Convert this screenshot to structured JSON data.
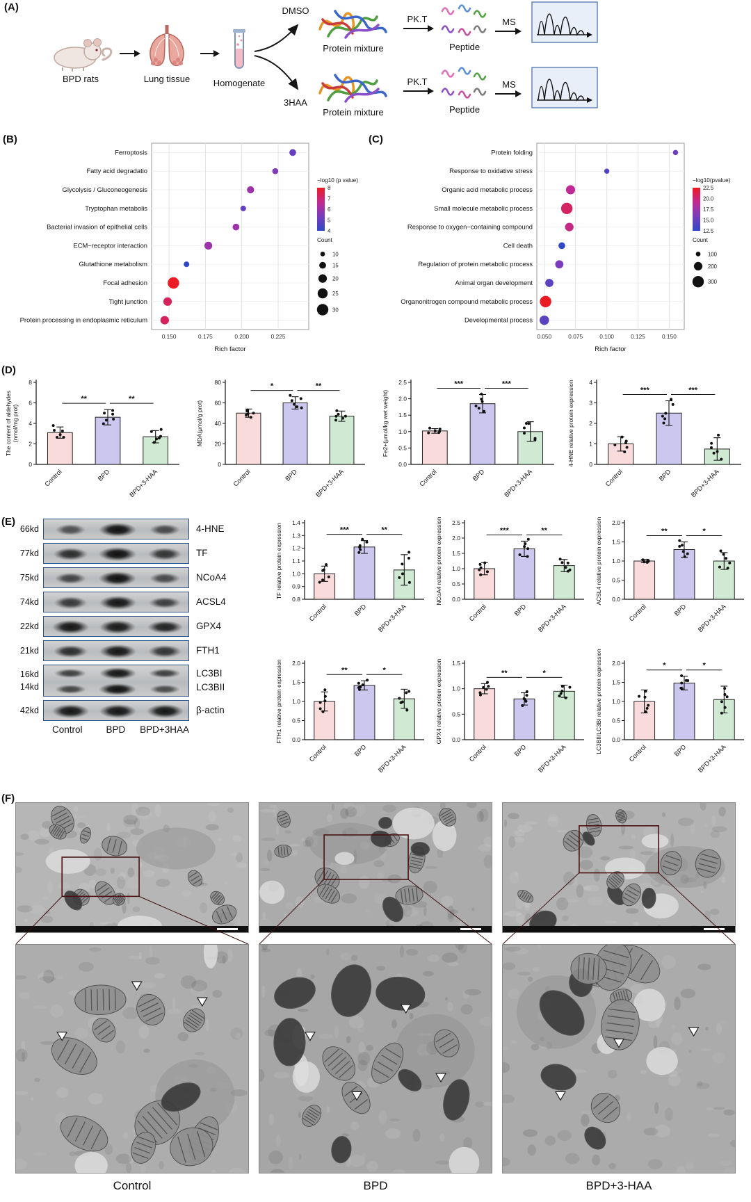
{
  "figure": {
    "panel_labels": [
      "(A)",
      "(B)",
      "(C)",
      "(D)",
      "(E)",
      "(F)"
    ]
  },
  "workflow": {
    "bpd_rats": "BPD rats",
    "lung_tissue": "Lung tissue",
    "homogenate": "Homogenate",
    "dmso": "DMSO",
    "haa": "3HAA",
    "protein_mixture": "Protein mixture",
    "pkt": "PK.T",
    "peptide": "Peptide",
    "ms": "MS"
  },
  "blots": {
    "lanes": [
      "Control",
      "BPD",
      "BPD+3HAA"
    ],
    "rows": [
      {
        "kd": [
          "66kd"
        ],
        "protein": [
          "4-HNE"
        ],
        "bands": [
          [
            0.45,
            1.0,
            0.5
          ]
        ]
      },
      {
        "kd": [
          "77kd"
        ],
        "protein": [
          "TF"
        ],
        "bands": [
          [
            0.75,
            1.0,
            0.7
          ]
        ]
      },
      {
        "kd": [
          "75kd"
        ],
        "protein": [
          "NCoA4"
        ],
        "bands": [
          [
            0.55,
            1.0,
            0.5
          ]
        ]
      },
      {
        "kd": [
          "74kd"
        ],
        "protein": [
          "ACSL4"
        ],
        "bands": [
          [
            0.65,
            0.95,
            0.6
          ]
        ]
      },
      {
        "kd": [
          "22kd"
        ],
        "protein": [
          "GPX4"
        ],
        "bands": [
          [
            0.95,
            0.9,
            0.85
          ]
        ]
      },
      {
        "kd": [
          "21kd"
        ],
        "protein": [
          "FTH1"
        ],
        "bands": [
          [
            0.75,
            0.95,
            0.7
          ]
        ]
      },
      {
        "kd": [
          "16kd",
          "14kd"
        ],
        "protein": [
          "LC3BI",
          "LC3BII"
        ],
        "bands": [
          [
            0.6,
            0.95,
            0.6
          ],
          [
            0.55,
            1.0,
            0.5
          ]
        ]
      },
      {
        "kd": [
          "42kd"
        ],
        "protein": [
          "β-actin"
        ],
        "bands": [
          [
            0.95,
            0.95,
            0.95
          ]
        ]
      }
    ]
  },
  "tem": {
    "columns": [
      {
        "label": "Control",
        "inset": [
          0.2,
          0.42,
          0.33,
          0.3
        ],
        "arrows": [
          [
            0.2,
            0.42
          ],
          [
            0.52,
            0.2
          ],
          [
            0.8,
            0.27
          ]
        ]
      },
      {
        "label": "BPD",
        "inset": [
          0.28,
          0.25,
          0.36,
          0.34
        ],
        "arrows": [
          [
            0.22,
            0.42
          ],
          [
            0.42,
            0.68
          ],
          [
            0.63,
            0.3
          ],
          [
            0.78,
            0.6
          ]
        ]
      },
      {
        "label": "BPD+3-HAA",
        "inset": [
          0.33,
          0.18,
          0.34,
          0.36
        ],
        "arrows": [
          [
            0.25,
            0.68
          ],
          [
            0.5,
            0.45
          ],
          [
            0.82,
            0.4
          ]
        ]
      }
    ]
  },
  "bar_style": {
    "fills": [
      "#f9dbdb",
      "#cbc7ee",
      "#cfe9d2"
    ],
    "stroke": "#222222"
  },
  "chart_data": [
    {
      "id": "kegg",
      "type": "scatter",
      "xlabel": "Rich factor",
      "xlim": [
        0.138,
        0.246
      ],
      "xticks": [
        0.15,
        0.175,
        0.2,
        0.225
      ],
      "color_domain": [
        4,
        8
      ],
      "size_domain": [
        10,
        30
      ],
      "color_legend_title": "−log10 (p value)",
      "color_legend_ticks": [
        "8",
        "7",
        "6",
        "5",
        "4"
      ],
      "size_legend_title": "Count",
      "size_legend_values": [
        10,
        15,
        20,
        25,
        30
      ],
      "points": [
        {
          "label": "Ferroptosis",
          "x": 0.235,
          "count": 15,
          "p": 5.0
        },
        {
          "label": "Fatty acid degradatio",
          "x": 0.223,
          "count": 13,
          "p": 5.5
        },
        {
          "label": "Glycolysis / Gluconeogenesis",
          "x": 0.206,
          "count": 16,
          "p": 6.0
        },
        {
          "label": "Tryptophan metabolis",
          "x": 0.201,
          "count": 12,
          "p": 5.0
        },
        {
          "label": "Bacterial invasion of epithelial cells",
          "x": 0.196,
          "count": 15,
          "p": 6.0
        },
        {
          "label": "ECM−receptor interaction",
          "x": 0.177,
          "count": 18,
          "p": 6.0
        },
        {
          "label": "Glutathione metabolism",
          "x": 0.162,
          "count": 12,
          "p": 4.0
        },
        {
          "label": "Focal adhesion",
          "x": 0.153,
          "count": 30,
          "p": 8.0
        },
        {
          "label": "Tight junction",
          "x": 0.149,
          "count": 20,
          "p": 7.3
        },
        {
          "label": "Protein processing in endoplasmic reticulum",
          "x": 0.147,
          "count": 20,
          "p": 7.3
        }
      ]
    },
    {
      "id": "go",
      "type": "scatter",
      "xlabel": "Rich factor",
      "xlim": [
        0.044,
        0.162
      ],
      "xticks": [
        0.05,
        0.075,
        0.1,
        0.125,
        0.15
      ],
      "color_domain": [
        12.5,
        22.5
      ],
      "size_domain": [
        100,
        300
      ],
      "color_legend_title": "−log10(pvalue)",
      "color_legend_ticks": [
        "22.5",
        "20.0",
        "17.5",
        "15.0",
        "12.5"
      ],
      "size_legend_title": "Count",
      "size_legend_values": [
        100,
        200,
        300
      ],
      "points": [
        {
          "label": "Protein folding",
          "x": 0.155,
          "count": 110,
          "p": 15.5
        },
        {
          "label": "Response to oxidative stress",
          "x": 0.1,
          "count": 110,
          "p": 14.0
        },
        {
          "label": "Organic acid metabolic process",
          "x": 0.071,
          "count": 220,
          "p": 19.0
        },
        {
          "label": "Small molecule metabolic process",
          "x": 0.068,
          "count": 300,
          "p": 20.5
        },
        {
          "label": "Response to oxygen−containing compound",
          "x": 0.07,
          "count": 200,
          "p": 19.5
        },
        {
          "label": "Cell death",
          "x": 0.064,
          "count": 150,
          "p": 12.5
        },
        {
          "label": "Regulation of protein metabolic process",
          "x": 0.062,
          "count": 190,
          "p": 16.0
        },
        {
          "label": "Animal organ development",
          "x": 0.054,
          "count": 190,
          "p": 14.5
        },
        {
          "label": "Organonitrogen compound metabolic process",
          "x": 0.051,
          "count": 300,
          "p": 22.5
        },
        {
          "label": "Developmental process",
          "x": 0.05,
          "count": 230,
          "p": 14.5
        }
      ]
    },
    {
      "id": "aldehydes",
      "type": "bar",
      "categories": [
        "Control",
        "BPD",
        "BPD+3-HAA"
      ],
      "ylabel": [
        "The content of aldehydes",
        "(nmol/mg prot)"
      ],
      "ylim": [
        0,
        8
      ],
      "yticks": [
        0,
        2,
        4,
        6,
        8
      ],
      "ydec": 0,
      "values": [
        3.1,
        4.6,
        2.7
      ],
      "errors": [
        0.55,
        0.75,
        0.6
      ],
      "sig": [
        {
          "a": 0,
          "b": 1,
          "label": "**"
        },
        {
          "a": 1,
          "b": 2,
          "label": "**"
        }
      ]
    },
    {
      "id": "mda",
      "type": "bar",
      "categories": [
        "Control",
        "BPD",
        "BPD+3-HAA"
      ],
      "ylabel": [
        "MDA(μmol/g prot)"
      ],
      "ylim": [
        0,
        80
      ],
      "yticks": [
        0,
        20,
        40,
        60,
        80
      ],
      "ydec": 0,
      "values": [
        50,
        60,
        47
      ],
      "errors": [
        4,
        6,
        5
      ],
      "sig": [
        {
          "a": 0,
          "b": 1,
          "label": "*"
        },
        {
          "a": 1,
          "b": 2,
          "label": "**"
        }
      ]
    },
    {
      "id": "fe2",
      "type": "bar",
      "categories": [
        "Control",
        "BPD",
        "BPD+3-HAA"
      ],
      "ylabel": [
        "Fe2+(μmol/kg wet weight)"
      ],
      "ylim": [
        0,
        2.5
      ],
      "yticks": [
        0,
        0.5,
        1,
        1.5,
        2,
        2.5
      ],
      "ydec": 1,
      "values": [
        1.02,
        1.85,
        1.0
      ],
      "errors": [
        0.07,
        0.28,
        0.3
      ],
      "sig": [
        {
          "a": 0,
          "b": 1,
          "label": "***"
        },
        {
          "a": 1,
          "b": 2,
          "label": "***"
        }
      ]
    },
    {
      "id": "hne4",
      "type": "bar",
      "categories": [
        "Control",
        "BPD",
        "BPD+3-HAA"
      ],
      "ylabel": [
        "4-HNE relative protein expression"
      ],
      "ylim": [
        0,
        4
      ],
      "yticks": [
        0,
        1,
        2,
        3,
        4
      ],
      "ydec": 0,
      "values": [
        1.0,
        2.5,
        0.75
      ],
      "errors": [
        0.35,
        0.6,
        0.55
      ],
      "sig": [
        {
          "a": 0,
          "b": 1,
          "label": "***"
        },
        {
          "a": 1,
          "b": 2,
          "label": "***"
        }
      ]
    },
    {
      "id": "tf",
      "type": "bar",
      "categories": [
        "Control",
        "BPD",
        "BPD+3-HAA"
      ],
      "ylabel": [
        "TF relative protein expression"
      ],
      "ylim": [
        0.8,
        1.4
      ],
      "yticks": [
        0.8,
        0.9,
        1.0,
        1.1,
        1.2,
        1.3,
        1.4
      ],
      "ydec": 1,
      "values": [
        1.0,
        1.21,
        1.03
      ],
      "errors": [
        0.06,
        0.05,
        0.12
      ],
      "sig": [
        {
          "a": 0,
          "b": 1,
          "label": "***"
        },
        {
          "a": 1,
          "b": 2,
          "label": "**"
        }
      ]
    },
    {
      "id": "ncoa4",
      "type": "bar",
      "categories": [
        "Control",
        "BPD",
        "BPD+3-HAA"
      ],
      "ylabel": [
        "NCoA4 relative protein expression"
      ],
      "ylim": [
        0,
        2.5
      ],
      "yticks": [
        0,
        0.5,
        1,
        1.5,
        2,
        2.5
      ],
      "ydec": 1,
      "values": [
        1.0,
        1.65,
        1.1
      ],
      "errors": [
        0.2,
        0.25,
        0.2
      ],
      "sig": [
        {
          "a": 0,
          "b": 1,
          "label": "***"
        },
        {
          "a": 1,
          "b": 2,
          "label": "**"
        }
      ]
    },
    {
      "id": "acsl4",
      "type": "bar",
      "categories": [
        "Control",
        "BPD",
        "BPD+3-HAA"
      ],
      "ylabel": [
        "ACSL4 relative protein expression"
      ],
      "ylim": [
        0,
        2
      ],
      "yticks": [
        0,
        0.5,
        1,
        1.5,
        2
      ],
      "ydec": 1,
      "values": [
        1.0,
        1.3,
        1.0
      ],
      "errors": [
        0.04,
        0.2,
        0.22
      ],
      "sig": [
        {
          "a": 0,
          "b": 1,
          "label": "**"
        },
        {
          "a": 1,
          "b": 2,
          "label": "*"
        }
      ]
    },
    {
      "id": "fth1",
      "type": "bar",
      "categories": [
        "Control",
        "BPD",
        "BPD+3-HAA"
      ],
      "ylabel": [
        "FTH1 relative protein expression"
      ],
      "ylim": [
        0,
        2
      ],
      "yticks": [
        0,
        0.5,
        1,
        1.5,
        2
      ],
      "ydec": 1,
      "values": [
        1.0,
        1.42,
        1.07
      ],
      "errors": [
        0.25,
        0.12,
        0.25
      ],
      "sig": [
        {
          "a": 0,
          "b": 1,
          "label": "**"
        },
        {
          "a": 1,
          "b": 2,
          "label": "*"
        }
      ]
    },
    {
      "id": "gpx4",
      "type": "bar",
      "categories": [
        "Control",
        "BPD",
        "BPD+3-HAA"
      ],
      "ylabel": [
        "GPX4 relative protein expression"
      ],
      "ylim": [
        0,
        1.5
      ],
      "yticks": [
        0,
        0.5,
        1,
        1.5
      ],
      "ydec": 1,
      "values": [
        1.0,
        0.8,
        0.95
      ],
      "errors": [
        0.1,
        0.12,
        0.12
      ],
      "sig": [
        {
          "a": 0,
          "b": 1,
          "label": "**"
        },
        {
          "a": 1,
          "b": 2,
          "label": "*"
        }
      ]
    },
    {
      "id": "lc3b",
      "type": "bar",
      "categories": [
        "Control",
        "BPD",
        "BPD+3-HAA"
      ],
      "ylabel": [
        "LC3BII/LC3BI relative protein expression"
      ],
      "ylim": [
        0,
        2
      ],
      "yticks": [
        0,
        0.5,
        1,
        1.5,
        2
      ],
      "ydec": 1,
      "values": [
        1.0,
        1.48,
        1.05
      ],
      "errors": [
        0.3,
        0.18,
        0.35
      ],
      "sig": [
        {
          "a": 0,
          "b": 1,
          "label": "*"
        },
        {
          "a": 1,
          "b": 2,
          "label": "*"
        }
      ]
    }
  ]
}
